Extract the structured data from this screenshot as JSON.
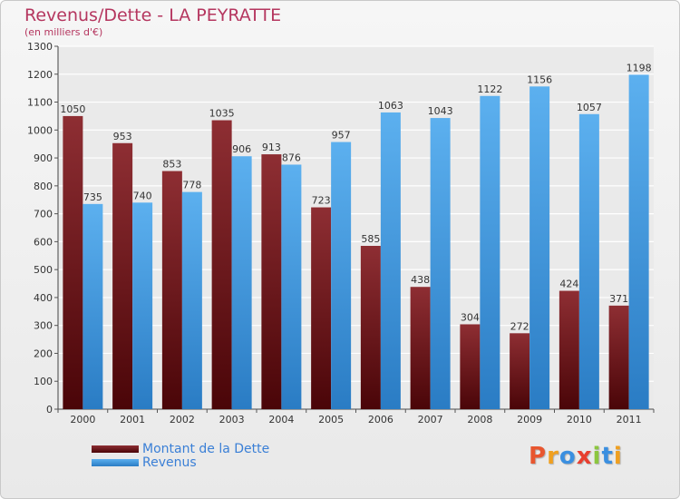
{
  "chart_data": {
    "type": "bar",
    "title": "Revenus/Dette - LA PEYRATTE",
    "subtitle": "(en milliers d'€)",
    "categories": [
      "2000",
      "2001",
      "2002",
      "2003",
      "2004",
      "2005",
      "2006",
      "2007",
      "2008",
      "2009",
      "2010",
      "2011"
    ],
    "series": [
      {
        "name": "Montant de la Dette",
        "color": "#7a1f24",
        "values": [
          1050,
          953,
          853,
          1035,
          913,
          723,
          585,
          438,
          304,
          272,
          424,
          371
        ]
      },
      {
        "name": "Revenus",
        "color": "#3d97e0",
        "values": [
          735,
          740,
          778,
          906,
          876,
          957,
          1063,
          1043,
          1122,
          1156,
          1057,
          1198
        ]
      }
    ],
    "ylim": [
      0,
      1300
    ],
    "yticks": [
      0,
      100,
      200,
      300,
      400,
      500,
      600,
      700,
      800,
      900,
      1000,
      1100,
      1200,
      1300
    ],
    "grid": true,
    "legend_position": "bottom-left"
  },
  "logo": {
    "text": "Proxiti",
    "colors": [
      "#e8562f",
      "#f0a020",
      "#3b8fe0",
      "#e83f2f",
      "#8cc63f",
      "#3b8fe0",
      "#f0a020"
    ]
  }
}
